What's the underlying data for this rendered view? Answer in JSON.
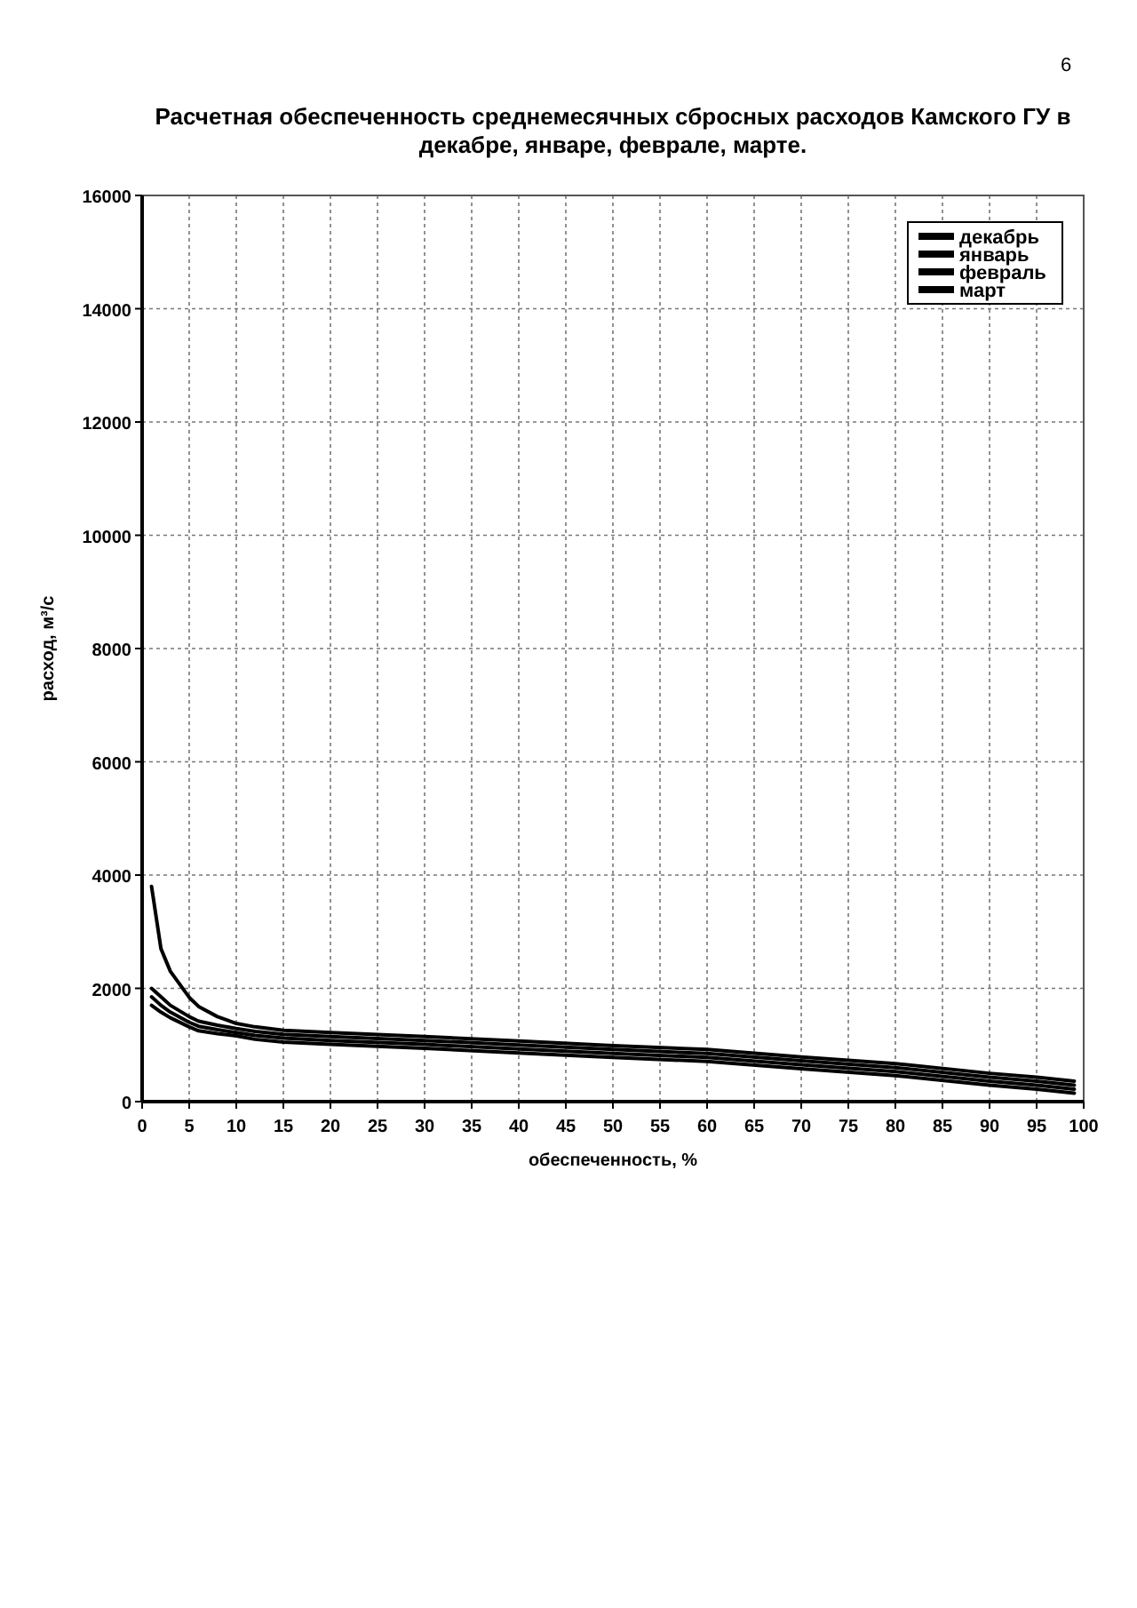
{
  "chart_data": {
    "type": "line",
    "title": "Расчетная обеспеченность среднемесячных сбросных расходов Камского ГУ в декабре, январе, феврале, марте.",
    "xlabel": "обеспеченность, %",
    "ylabel": "расход, м³/с",
    "x": [
      1,
      2,
      3,
      5,
      6,
      8,
      10,
      12,
      15,
      20,
      30,
      40,
      50,
      60,
      70,
      80,
      90,
      95,
      99
    ],
    "series": [
      {
        "name": "декабрь",
        "color": "#000000",
        "values": [
          3800,
          2700,
          2300,
          1840,
          1680,
          1500,
          1380,
          1320,
          1260,
          1220,
          1150,
          1070,
          990,
          920,
          790,
          670,
          500,
          430,
          360
        ]
      },
      {
        "name": "январь",
        "color": "#000000",
        "values": [
          2000,
          1850,
          1700,
          1500,
          1420,
          1350,
          1290,
          1240,
          1190,
          1150,
          1080,
          1000,
          920,
          850,
          720,
          600,
          430,
          360,
          290
        ]
      },
      {
        "name": "февраль",
        "color": "#000000",
        "values": [
          1850,
          1700,
          1580,
          1400,
          1330,
          1270,
          1220,
          1170,
          1120,
          1080,
          1010,
          930,
          850,
          780,
          650,
          530,
          360,
          290,
          220
        ]
      },
      {
        "name": "март",
        "color": "#000000",
        "values": [
          1700,
          1580,
          1480,
          1320,
          1250,
          1200,
          1160,
          1100,
          1050,
          1010,
          940,
          860,
          780,
          710,
          580,
          460,
          290,
          220,
          150
        ]
      }
    ],
    "xlim": [
      0,
      100
    ],
    "xticks": [
      0,
      5,
      10,
      15,
      20,
      25,
      30,
      35,
      40,
      45,
      50,
      55,
      60,
      65,
      70,
      75,
      80,
      85,
      90,
      95,
      100
    ],
    "ylim": [
      0,
      16000
    ],
    "yticks": [
      0,
      2000,
      4000,
      6000,
      8000,
      10000,
      12000,
      14000,
      16000
    ],
    "grid": true,
    "legend": "top right",
    "marker": "none",
    "line_style": "solid",
    "annotations": [
      "6"
    ]
  }
}
